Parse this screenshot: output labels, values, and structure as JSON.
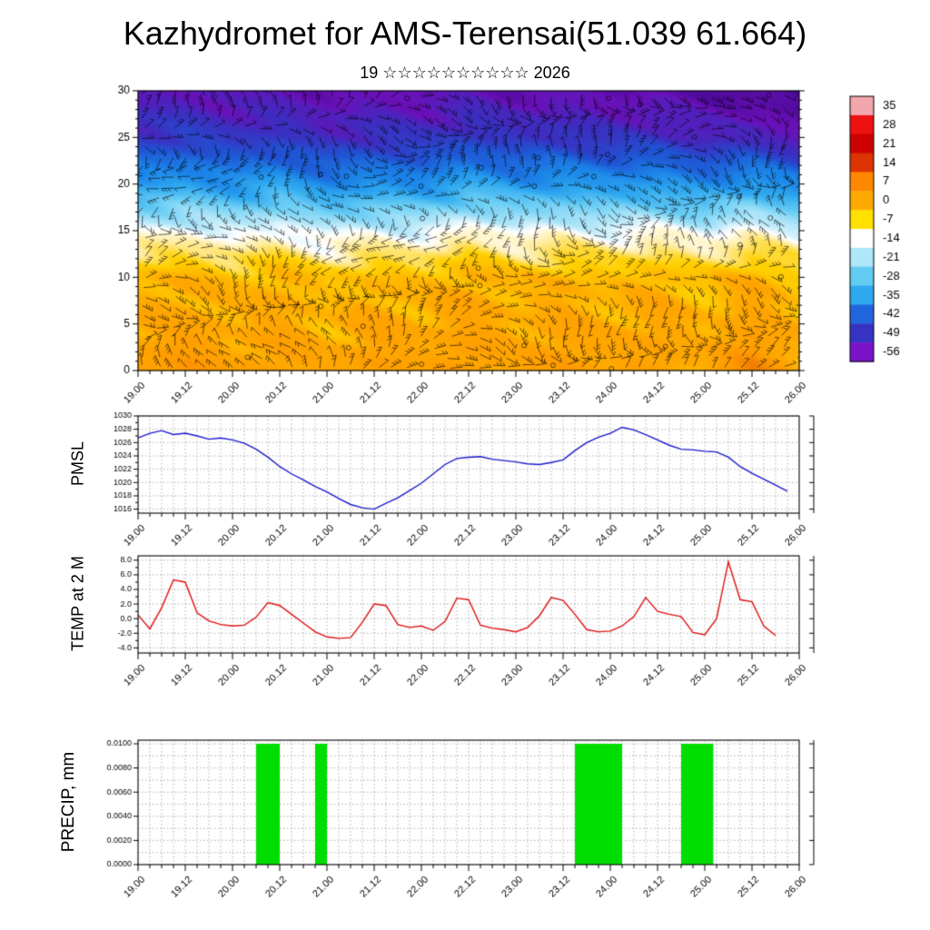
{
  "header": {
    "title": "Kazhydromet for AMS-Terensai(51.039 61.664)",
    "subtitle": "19 ☆☆☆☆☆☆☆☆☆☆ 2026"
  },
  "chart_data": [
    {
      "type": "heatmap",
      "name": "wind-temperature-cross-section",
      "x_tick_labels": [
        "19.00",
        "19.12",
        "20.00",
        "20.12",
        "21.00",
        "21.12",
        "22.00",
        "22.12",
        "23.00",
        "23.12",
        "24.00",
        "24.12",
        "25.00",
        "25.12",
        "26.00"
      ],
      "y_ticks": [
        0,
        5,
        10,
        15,
        20,
        25,
        30
      ],
      "y_range": [
        0,
        30
      ],
      "levels": [
        0,
        5,
        10,
        15,
        20,
        25,
        30
      ],
      "time_step_days": 0.5,
      "temperature_grid": [
        [
          0.5,
          5.0,
          -1.0,
          1.8,
          -2.5,
          2.0,
          -1.0,
          2.6,
          -1.8,
          2.5,
          -1.7,
          1.0,
          -2.2,
          7.8,
          -2.5
        ],
        [
          -2,
          -1,
          -3,
          -1,
          -4,
          -1,
          -3,
          0,
          -3,
          -1,
          -3,
          -1,
          -4,
          0,
          -4
        ],
        [
          -4,
          -3,
          -5,
          -3,
          -6,
          -4,
          -5,
          -2,
          -5,
          -3,
          -5,
          -3,
          -6,
          -2,
          -6
        ],
        [
          -15,
          -14,
          -16,
          -14,
          -17,
          -15,
          -16,
          -13,
          -15,
          -14,
          -15,
          -14,
          -16,
          -13,
          -16
        ],
        [
          -32,
          -31,
          -33,
          -31,
          -35,
          -33,
          -34,
          -30,
          -33,
          -32,
          -33,
          -32,
          -35,
          -31,
          -36
        ],
        [
          -48,
          -47,
          -49,
          -48,
          -51,
          -49,
          -50,
          -47,
          -49,
          -48,
          -50,
          -49,
          -52,
          -51,
          -55
        ],
        [
          -55,
          -54,
          -56,
          -55,
          -57,
          -56,
          -57,
          -55,
          -57,
          -56,
          -58,
          -57,
          -59,
          -60,
          -63
        ]
      ],
      "wind_barbs": true,
      "color_scale_stops": [
        [
          12,
          "#e87000"
        ],
        [
          4,
          "#ff9800"
        ],
        [
          -2,
          "#ffa800"
        ],
        [
          -7,
          "#ffd000"
        ],
        [
          -11,
          "#ffeb99"
        ],
        [
          -14.5,
          "#ffffff"
        ],
        [
          -18,
          "#b8e8fa"
        ],
        [
          -24,
          "#6fd0f5"
        ],
        [
          -30,
          "#30aaf0"
        ],
        [
          -36,
          "#1b85e8"
        ],
        [
          -43,
          "#1f55d4"
        ],
        [
          -50,
          "#3c2ec0"
        ],
        [
          -56,
          "#6a10b8"
        ],
        [
          -64,
          "#3a0684"
        ]
      ],
      "colorbar": {
        "labels": [
          "35",
          "28",
          "21",
          "14",
          "7",
          "0",
          "-7",
          "-14",
          "-21",
          "-28",
          "-35",
          "-42",
          "-49",
          "-56"
        ],
        "colors": [
          "#f4a6ad",
          "#ee1111",
          "#cc0000",
          "#dd3300",
          "#ff8800",
          "#ffaa00",
          "#ffe000",
          "#ffffff",
          "#aee6fa",
          "#62ccf2",
          "#2fa8ee",
          "#2266dd",
          "#3633c2",
          "#7b14c8"
        ]
      }
    },
    {
      "type": "line",
      "name": "pmsl",
      "ylabel": "PMSL",
      "color": "#1a1acc",
      "y_range": [
        1015.4,
        1030
      ],
      "y_ticks": [
        1016,
        1018,
        1020,
        1022,
        1024,
        1026,
        1028,
        1030
      ],
      "y_tick_labels": [
        "1016",
        "1018",
        "1020",
        "1022",
        "1024",
        "1026",
        "1028",
        "1030"
      ],
      "y_minor_step": 1,
      "x_step_days": 0.125,
      "x_tick_labels": [
        "19.00",
        "19.12",
        "20.00",
        "20.12",
        "21.00",
        "21.12",
        "22.00",
        "22.12",
        "23.00",
        "23.12",
        "24.00",
        "24.12",
        "25.00",
        "25.12",
        "26.00"
      ],
      "values": [
        1026.7,
        1027.4,
        1027.8,
        1027.2,
        1027.4,
        1027.0,
        1026.5,
        1026.7,
        1026.4,
        1025.9,
        1025.0,
        1023.8,
        1022.4,
        1021.3,
        1020.4,
        1019.4,
        1018.6,
        1017.6,
        1016.7,
        1016.2,
        1016.0,
        1016.9,
        1017.7,
        1018.8,
        1019.9,
        1021.3,
        1022.7,
        1023.6,
        1023.8,
        1023.9,
        1023.5,
        1023.3,
        1023.1,
        1022.8,
        1022.7,
        1023.0,
        1023.4,
        1024.8,
        1026.0,
        1026.8,
        1027.4,
        1028.3,
        1027.9,
        1027.2,
        1026.4,
        1025.6,
        1025.0,
        1024.9,
        1024.7,
        1024.6,
        1023.8,
        1022.4,
        1021.4,
        1020.5,
        1019.6,
        1018.7,
        null
      ]
    },
    {
      "type": "line",
      "name": "temp-2m",
      "ylabel": "TEMP at 2 M",
      "color": "#dd1111",
      "y_range": [
        -4.7,
        8.6
      ],
      "y_ticks": [
        -4,
        -2,
        0,
        2,
        4,
        6,
        8
      ],
      "y_tick_labels": [
        "-4.0",
        "-2.0",
        "0.0",
        "2.0",
        "4.0",
        "6.0",
        "8.0"
      ],
      "y_minor_step": 1,
      "x_step_days": 0.125,
      "x_tick_labels": [
        "19.00",
        "19.12",
        "20.00",
        "20.12",
        "21.00",
        "21.12",
        "22.00",
        "22.12",
        "23.00",
        "23.12",
        "24.00",
        "24.12",
        "25.00",
        "25.12",
        "26.00"
      ],
      "values": [
        0.5,
        -1.4,
        1.5,
        5.3,
        5.0,
        0.8,
        -0.3,
        -0.8,
        -1.0,
        -0.9,
        0.2,
        2.2,
        1.8,
        0.6,
        -0.6,
        -1.8,
        -2.5,
        -2.7,
        -2.6,
        -0.5,
        2.0,
        1.8,
        -0.8,
        -1.2,
        -1.0,
        -1.6,
        -0.4,
        2.8,
        2.6,
        -0.9,
        -1.3,
        -1.5,
        -1.8,
        -1.2,
        0.4,
        2.9,
        2.5,
        0.6,
        -1.5,
        -1.8,
        -1.7,
        -1.0,
        0.3,
        2.9,
        1.0,
        0.6,
        0.3,
        -1.9,
        -2.2,
        0.0,
        7.8,
        2.6,
        2.3,
        -1.0,
        -2.3,
        null,
        null
      ]
    },
    {
      "type": "bar",
      "name": "precip",
      "ylabel": "PRECIP, mm",
      "color": "#00dd00",
      "y_range": [
        0,
        0.0103
      ],
      "y_ticks": [
        0.0,
        0.002,
        0.004,
        0.006,
        0.008,
        0.01
      ],
      "y_tick_labels": [
        "0.0000",
        "0.0020",
        "0.0040",
        "0.0060",
        "0.0080",
        "0.0100"
      ],
      "y_grid_step": 0.001,
      "x_tick_labels": [
        "19.00",
        "19.12",
        "20.00",
        "20.12",
        "21.00",
        "21.12",
        "22.00",
        "22.12",
        "23.00",
        "23.12",
        "24.00",
        "24.12",
        "25.00",
        "25.12",
        "26.00"
      ],
      "bars": [
        {
          "start_day": 1.25,
          "end_day": 1.5,
          "value": 0.01
        },
        {
          "start_day": 1.875,
          "end_day": 2.0,
          "value": 0.01
        },
        {
          "start_day": 4.625,
          "end_day": 5.125,
          "value": 0.01
        },
        {
          "start_day": 5.75,
          "end_day": 6.09,
          "value": 0.01
        }
      ]
    }
  ]
}
